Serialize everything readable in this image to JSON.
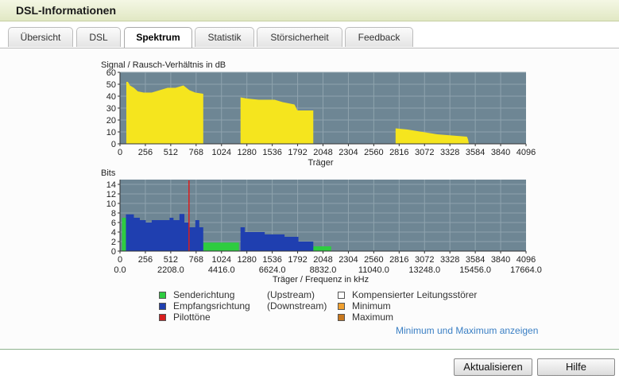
{
  "window": {
    "title": "DSL-Informationen"
  },
  "tabs": [
    {
      "label": "Übersicht",
      "active": false
    },
    {
      "label": "DSL",
      "active": false
    },
    {
      "label": "Spektrum",
      "active": true
    },
    {
      "label": "Statistik",
      "active": false
    },
    {
      "label": "Störsicherheit",
      "active": false
    },
    {
      "label": "Feedback",
      "active": false
    }
  ],
  "chart_data": [
    {
      "type": "area",
      "title": "Signal / Rausch-Verhältnis in dB",
      "xlabel": "Träger",
      "ylabel": "",
      "xlim": [
        0,
        4096
      ],
      "ylim": [
        0,
        60
      ],
      "x_ticks": [
        0,
        256,
        512,
        768,
        1024,
        1280,
        1536,
        1792,
        2048,
        2304,
        2560,
        2816,
        3072,
        3328,
        3584,
        3840,
        4096
      ],
      "y_ticks": [
        0,
        10,
        20,
        30,
        40,
        50,
        60
      ],
      "grid": true,
      "colors": {
        "background": "#6e8694",
        "grid": "#8fa3ae",
        "fill": "#f5e51e"
      },
      "series": [
        {
          "points": [
            [
              64,
              0
            ],
            [
              64,
              52
            ],
            [
              80,
              52
            ],
            [
              100,
              49
            ],
            [
              140,
              47
            ],
            [
              180,
              44
            ],
            [
              240,
              43
            ],
            [
              320,
              43
            ],
            [
              400,
              45
            ],
            [
              480,
              47
            ],
            [
              560,
              47
            ],
            [
              640,
              49
            ],
            [
              700,
              45
            ],
            [
              760,
              43
            ],
            [
              840,
              42
            ],
            [
              840,
              0
            ]
          ]
        },
        {
          "points": [
            [
              1216,
              0
            ],
            [
              1216,
              39
            ],
            [
              1280,
              38
            ],
            [
              1400,
              37
            ],
            [
              1560,
              37
            ],
            [
              1640,
              35
            ],
            [
              1760,
              33
            ],
            [
              1790,
              28
            ],
            [
              1950,
              28
            ],
            [
              1950,
              0
            ]
          ]
        },
        {
          "points": [
            [
              2780,
              0
            ],
            [
              2780,
              13
            ],
            [
              2900,
              12
            ],
            [
              3050,
              10
            ],
            [
              3200,
              8
            ],
            [
              3350,
              7
            ],
            [
              3500,
              6
            ],
            [
              3510,
              4
            ],
            [
              3520,
              0
            ]
          ]
        }
      ]
    },
    {
      "type": "bar",
      "title": "Bits",
      "xlabel": "Träger / Frequenz in kHz",
      "ylabel": "",
      "xlim": [
        0,
        4096
      ],
      "ylim": [
        0,
        15
      ],
      "x_ticks": [
        0,
        256,
        512,
        768,
        1024,
        1280,
        1536,
        1792,
        2048,
        2304,
        2560,
        2816,
        3072,
        3328,
        3584,
        3840,
        4096
      ],
      "freq_ticks": [
        "0.0",
        "2208.0",
        "4416.0",
        "6624.0",
        "8832.0",
        "11040.0",
        "13248.0",
        "15456.0",
        "17664.0"
      ],
      "y_ticks": [
        0,
        2,
        4,
        6,
        8,
        10,
        12,
        14
      ],
      "grid": true,
      "colors": {
        "background": "#6e8694",
        "grid": "#8fa3ae",
        "upstream": "#2ecc40",
        "downstream": "#1f3fb0",
        "pilot": "#d81e1e"
      },
      "upstream": [
        [
          20,
          0
        ],
        [
          20,
          7
        ],
        [
          60,
          7
        ],
        [
          60,
          0
        ]
      ],
      "upstream_extra": [
        [
          840,
          0
        ],
        [
          840,
          1.8
        ],
        [
          1200,
          1.8
        ],
        [
          1200,
          0
        ]
      ],
      "upstream_extra2": [
        [
          1950,
          0
        ],
        [
          1950,
          1
        ],
        [
          2130,
          1
        ],
        [
          2130,
          0
        ]
      ],
      "downstream": [
        [
          60,
          0
        ],
        [
          60,
          7.7
        ],
        [
          140,
          7.7
        ],
        [
          140,
          7
        ],
        [
          200,
          7
        ],
        [
          200,
          6.5
        ],
        [
          260,
          6.5
        ],
        [
          260,
          6
        ],
        [
          320,
          6
        ],
        [
          320,
          6.5
        ],
        [
          500,
          6.5
        ],
        [
          500,
          7
        ],
        [
          540,
          7
        ],
        [
          540,
          6.5
        ],
        [
          600,
          6.5
        ],
        [
          600,
          7.8
        ],
        [
          650,
          7.8
        ],
        [
          650,
          6
        ],
        [
          700,
          6
        ],
        [
          700,
          5
        ],
        [
          760,
          5
        ],
        [
          760,
          6.5
        ],
        [
          800,
          6.5
        ],
        [
          800,
          5
        ],
        [
          840,
          5
        ],
        [
          840,
          0
        ]
      ],
      "downstream2": [
        [
          1216,
          0
        ],
        [
          1216,
          5
        ],
        [
          1260,
          5
        ],
        [
          1260,
          4
        ],
        [
          1460,
          4
        ],
        [
          1460,
          3.5
        ],
        [
          1660,
          3.5
        ],
        [
          1660,
          3
        ],
        [
          1800,
          3
        ],
        [
          1800,
          2
        ],
        [
          1950,
          2
        ],
        [
          1950,
          0
        ]
      ],
      "pilot_tone": 696
    }
  ],
  "legend": [
    {
      "label": "Senderichtung",
      "direction": "(Upstream)",
      "color": "#2ecc40"
    },
    {
      "label": "Empfangsrichtung",
      "direction": "(Downstream)",
      "color": "#1f3fb0"
    },
    {
      "label": "Pilottöne",
      "direction": "",
      "color": "#d81e1e"
    }
  ],
  "legend_right": [
    {
      "label": "Kompensierter Leitungsstörer",
      "color": "#ffffff"
    },
    {
      "label": "Minimum",
      "color": "#f0a030"
    },
    {
      "label": "Maximum",
      "color": "#c8781e"
    }
  ],
  "link_min_max": "Minimum und Maximum anzeigen",
  "buttons": {
    "refresh": "Aktualisieren",
    "help": "Hilfe"
  }
}
